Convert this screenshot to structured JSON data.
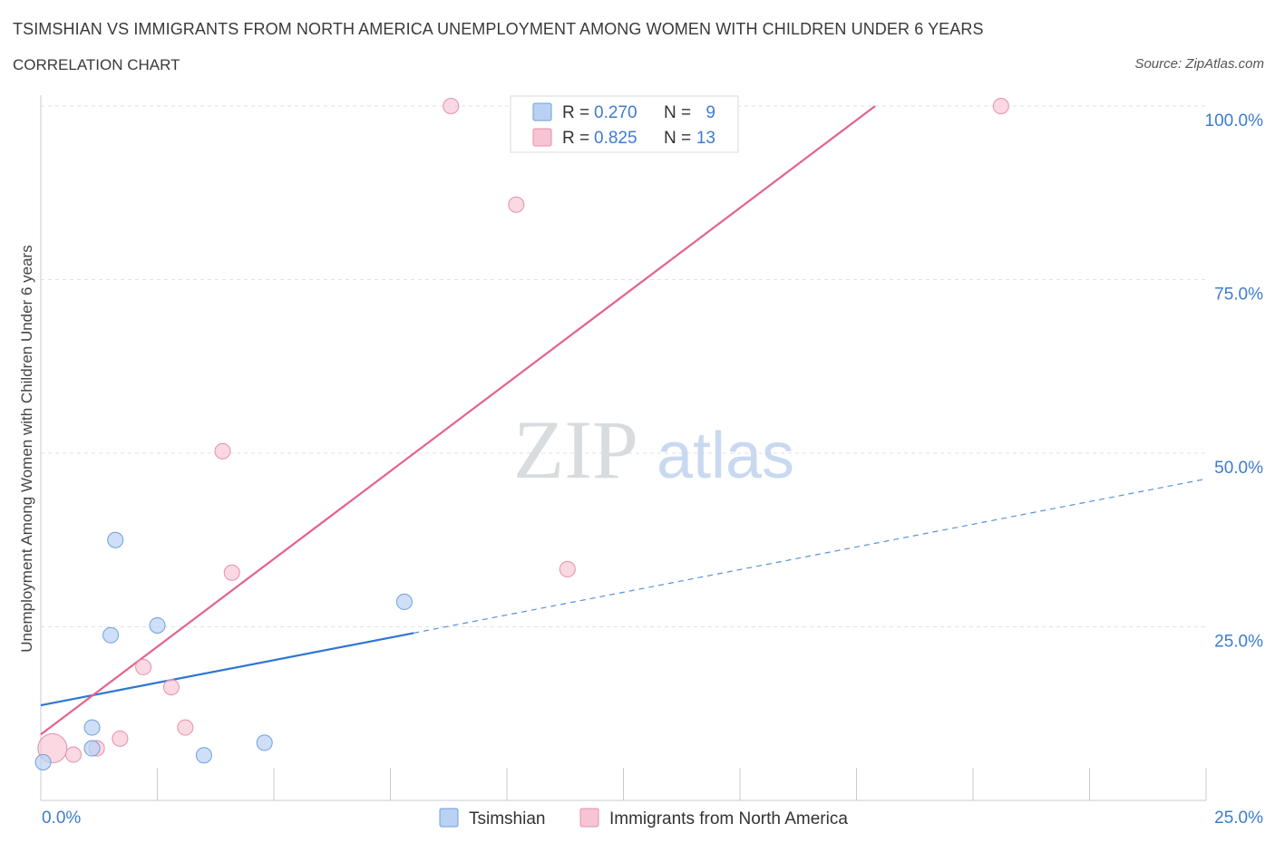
{
  "header": {
    "title": "TSIMSHIAN VS IMMIGRANTS FROM NORTH AMERICA UNEMPLOYMENT AMONG WOMEN WITH CHILDREN UNDER 6 YEARS",
    "subtitle": "CORRELATION CHART",
    "source": "Source: ZipAtlas.com"
  },
  "watermark": {
    "zip": "ZIP",
    "atlas": "atlas"
  },
  "colors": {
    "tsimshian_fill": "#b9d1f3",
    "tsimshian_stroke": "#6e9fdc",
    "tsimshian_line": "#2e76d2",
    "immig_fill": "#f7c4d3",
    "immig_stroke": "#e58fab",
    "immig_line": "#e5628c",
    "tick_label": "#3d7ccf",
    "grid": "#dde1e6"
  },
  "chart_data": {
    "type": "scatter",
    "title": "TSIMSHIAN VS IMMIGRANTS FROM NORTH AMERICA UNEMPLOYMENT AMONG WOMEN WITH CHILDREN UNDER 6 YEARS",
    "xlabel": "",
    "ylabel": "Unemployment Among Women with Children Under 6 years",
    "xlim": [
      0,
      25
    ],
    "ylim": [
      0,
      100
    ],
    "x_tick_labels": [
      "0.0%",
      "25.0%"
    ],
    "y_tick_labels": [
      "100.0%",
      "75.0%",
      "50.0%",
      "25.0%"
    ],
    "y_tick_values": [
      100,
      75,
      50,
      25
    ],
    "legend_position": "bottom-center",
    "stats": [
      {
        "r_label": "R =",
        "r": "0.270",
        "n_label": "N =",
        "n": "9"
      },
      {
        "r_label": "R =",
        "r": "0.825",
        "n_label": "N =",
        "n": "13"
      }
    ],
    "series": [
      {
        "name": "Tsimshian",
        "points": [
          {
            "x": 0.05,
            "y": 5.5
          },
          {
            "x": 1.1,
            "y": 7.5
          },
          {
            "x": 1.1,
            "y": 10.5
          },
          {
            "x": 1.6,
            "y": 37.5
          },
          {
            "x": 1.5,
            "y": 23.8
          },
          {
            "x": 2.5,
            "y": 25.2
          },
          {
            "x": 3.5,
            "y": 6.5
          },
          {
            "x": 4.8,
            "y": 8.3
          },
          {
            "x": 7.8,
            "y": 28.6
          }
        ],
        "trend": {
          "x0": 0,
          "y0": 13.7,
          "x1": 8.0,
          "y1": 24.1,
          "dashed_to_x": 25,
          "dashed_to_y": 46.3
        }
      },
      {
        "name": "Immigrants from North America",
        "points": [
          {
            "x": 0.25,
            "y": 7.5,
            "large": true
          },
          {
            "x": 0.7,
            "y": 6.6
          },
          {
            "x": 1.2,
            "y": 7.5
          },
          {
            "x": 1.7,
            "y": 8.9
          },
          {
            "x": 2.2,
            "y": 19.2
          },
          {
            "x": 2.8,
            "y": 16.3
          },
          {
            "x": 3.1,
            "y": 10.5
          },
          {
            "x": 3.9,
            "y": 50.3
          },
          {
            "x": 4.1,
            "y": 32.8
          },
          {
            "x": 8.8,
            "y": 100
          },
          {
            "x": 10.2,
            "y": 85.8
          },
          {
            "x": 11.3,
            "y": 33.3
          },
          {
            "x": 20.6,
            "y": 100
          }
        ],
        "trend": {
          "x0": 0,
          "y0": 9.5,
          "x1": 17.9,
          "y1": 100
        }
      }
    ]
  }
}
